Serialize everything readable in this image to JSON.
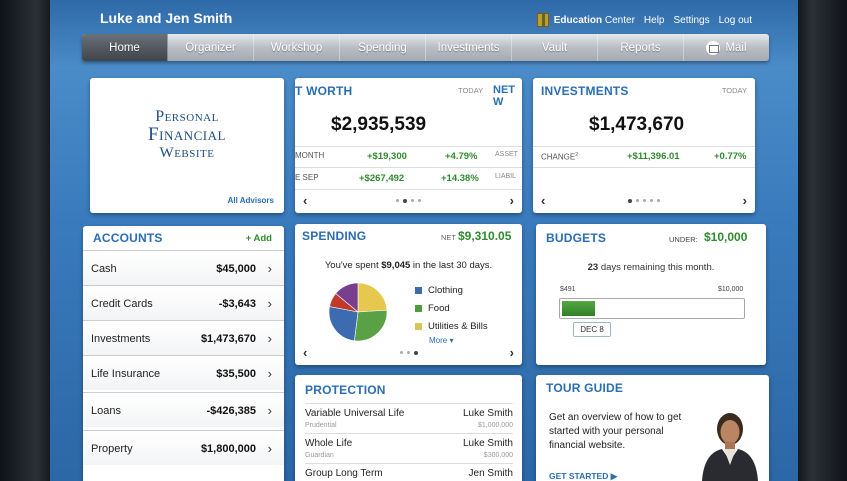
{
  "header": {
    "user_name": "Luke and Jen Smith",
    "links": {
      "education_center_bold": "Education",
      "education_center_rest": " Center",
      "help": "Help",
      "settings": "Settings",
      "logout": "Log out"
    }
  },
  "nav": {
    "items": [
      "Home",
      "Organizer",
      "Workshop",
      "Spending",
      "Investments",
      "Vault",
      "Reports",
      "Mail"
    ]
  },
  "logo_card": {
    "line1": "Personal",
    "line2": "Financial",
    "line3": "Website",
    "all_advisors": "All Advisors"
  },
  "net_worth": {
    "title": "T WORTH",
    "today": "TODAY",
    "next_title": "NET W",
    "amount": "$2,935,539",
    "rows": [
      {
        "label": "MONTH",
        "change": "+$19,300",
        "pct": "+4.79%",
        "peek": "ASSET"
      },
      {
        "label": "E SEP",
        "change": "+$267,492",
        "pct": "+14.38%",
        "peek": "LIABIL"
      }
    ]
  },
  "investments": {
    "title": "INVESTMENTS",
    "today": "TODAY",
    "amount": "$1,473,670",
    "change_label": "CHANGE",
    "change_sup": "2",
    "change": "+$11,396.01",
    "pct": "+0.77%"
  },
  "accounts": {
    "title": "ACCOUNTS",
    "add_label": "+ Add",
    "rows": [
      {
        "label": "Cash",
        "value": "$45,000"
      },
      {
        "label": "Credit Cards",
        "value": "-$3,643"
      },
      {
        "label": "Investments",
        "value": "$1,473,670"
      },
      {
        "label": "Life Insurance",
        "value": "$35,500"
      },
      {
        "label": "Loans",
        "value": "-$426,385"
      },
      {
        "label": "Property",
        "value": "$1,800,000"
      }
    ]
  },
  "spending": {
    "title": "SPENDING",
    "net_label": "NET",
    "net_value": "$9,310.05",
    "summary_pre": "You've spent ",
    "summary_amount": "$9,045",
    "summary_post": " in the last 30 days.",
    "more": "More",
    "legend": [
      {
        "label": "Clothing",
        "color": "#3c6bb0"
      },
      {
        "label": "Food",
        "color": "#4f9a3d"
      },
      {
        "label": "Utilities & Bills",
        "color": "#d8c55a"
      }
    ],
    "pie_slices": [
      {
        "color": "#e7c84f",
        "share": 0.24
      },
      {
        "color": "#5aa044",
        "share": 0.28
      },
      {
        "color": "#3c6bb0",
        "share": 0.26
      },
      {
        "color": "#c0392b",
        "share": 0.08
      },
      {
        "color": "#7a3e8e",
        "share": 0.14
      }
    ]
  },
  "budgets": {
    "title": "BUDGETS",
    "under_label": "UNDER:",
    "under_value": "$10,000",
    "days_num": "23",
    "days_text": " days remaining this month.",
    "min_label": "$491",
    "max_label": "$10,000",
    "progress": 0.18,
    "date": "DEC 8"
  },
  "protection": {
    "title": "PROTECTION",
    "rows": [
      {
        "name": "Variable Universal Life",
        "sub": "Prudential",
        "person": "Luke Smith",
        "amount": "$1,000,000"
      },
      {
        "name": "Whole Life",
        "sub": "Guardian",
        "person": "Luke Smith",
        "amount": "$300,000"
      },
      {
        "name": "Group Long Term",
        "sub": "",
        "person": "Jen Smith",
        "amount": ""
      }
    ]
  },
  "tour_guide": {
    "title": "TOUR GUIDE",
    "text": "Get an overview of how to get started with your personal financial website.",
    "link": "GET STARTED ▶"
  }
}
